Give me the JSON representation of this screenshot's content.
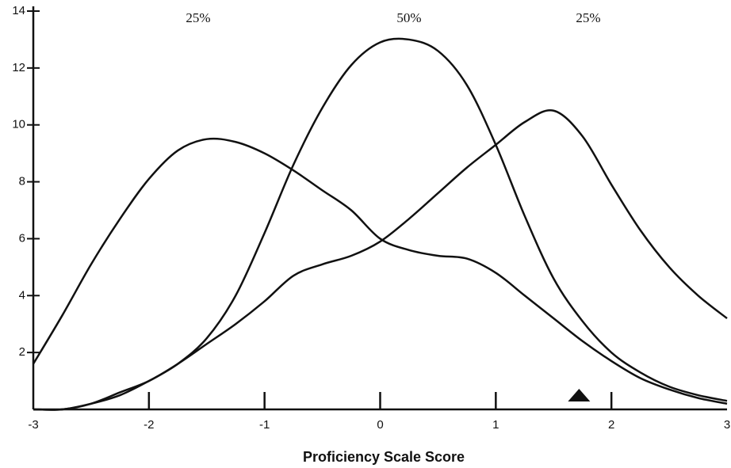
{
  "chart_data": {
    "type": "line",
    "xlabel": "Proficiency Scale Score",
    "annotations": [
      "25%",
      "50%",
      "25%"
    ],
    "x": [
      -3,
      -2.75,
      -2.5,
      -2.25,
      -2,
      -1.75,
      -1.5,
      -1.25,
      -1,
      -0.75,
      -0.5,
      -0.25,
      0,
      0.25,
      0.5,
      0.75,
      1,
      1.25,
      1.5,
      1.75,
      2,
      2.25,
      2.5,
      2.75,
      3
    ],
    "series": [
      {
        "color": "#111111",
        "values": [
          1.6,
          3.3,
          5.1,
          6.7,
          8.1,
          9.1,
          9.5,
          9.4,
          9.0,
          8.4,
          7.7,
          7.0,
          6.0,
          5.6,
          5.4,
          5.3,
          4.8,
          4.0,
          3.2,
          2.4,
          1.7,
          1.1,
          0.7,
          0.4,
          0.2
        ]
      },
      {
        "color": "#111111",
        "values": [
          0,
          0,
          0.2,
          0.5,
          1.0,
          1.6,
          2.5,
          4.0,
          6.2,
          8.6,
          10.6,
          12.1,
          12.9,
          13.0,
          12.6,
          11.4,
          9.3,
          6.8,
          4.6,
          3.1,
          2.0,
          1.3,
          0.8,
          0.5,
          0.3
        ]
      },
      {
        "color": "#111111",
        "values": [
          0,
          0,
          0.2,
          0.6,
          1.0,
          1.6,
          2.3,
          3.0,
          3.8,
          4.7,
          5.1,
          5.4,
          5.9,
          6.7,
          7.6,
          8.5,
          9.3,
          10.1,
          10.5,
          9.6,
          7.9,
          6.3,
          5.0,
          4.0,
          3.2
        ]
      }
    ],
    "marker_x": 1.72,
    "xlim": [
      -3,
      3
    ],
    "xticks": [
      -3,
      -2,
      -1,
      0,
      1,
      2,
      3
    ],
    "ylim": [
      0,
      14
    ],
    "yticks": [
      2,
      4,
      6,
      8,
      10,
      12,
      14
    ]
  }
}
